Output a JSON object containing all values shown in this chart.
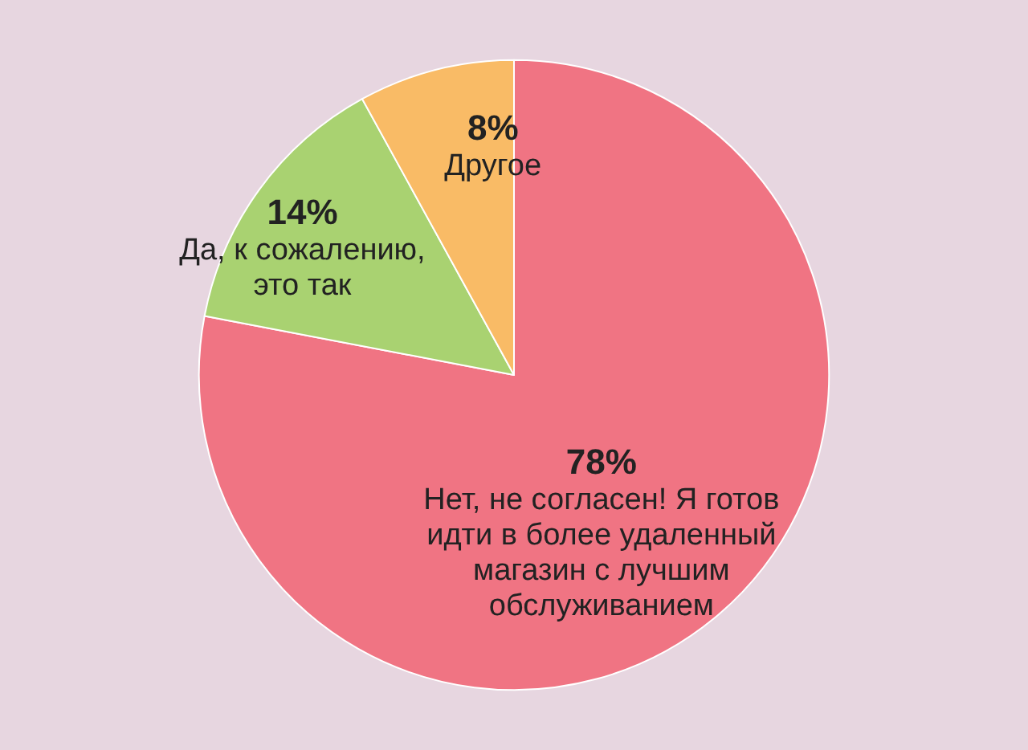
{
  "chart_data": {
    "type": "pie",
    "categories": [
      "Нет, не согласен! Я готов идти в более удаленный магазин с лучшим обслуживанием",
      "Да, к сожалению, это так",
      "Другое"
    ],
    "values": [
      78,
      14,
      8
    ],
    "value_labels": [
      "78%",
      "14%",
      "8%"
    ],
    "colors": [
      "#f07483",
      "#a9d271",
      "#f9bb66"
    ],
    "legend": false
  }
}
